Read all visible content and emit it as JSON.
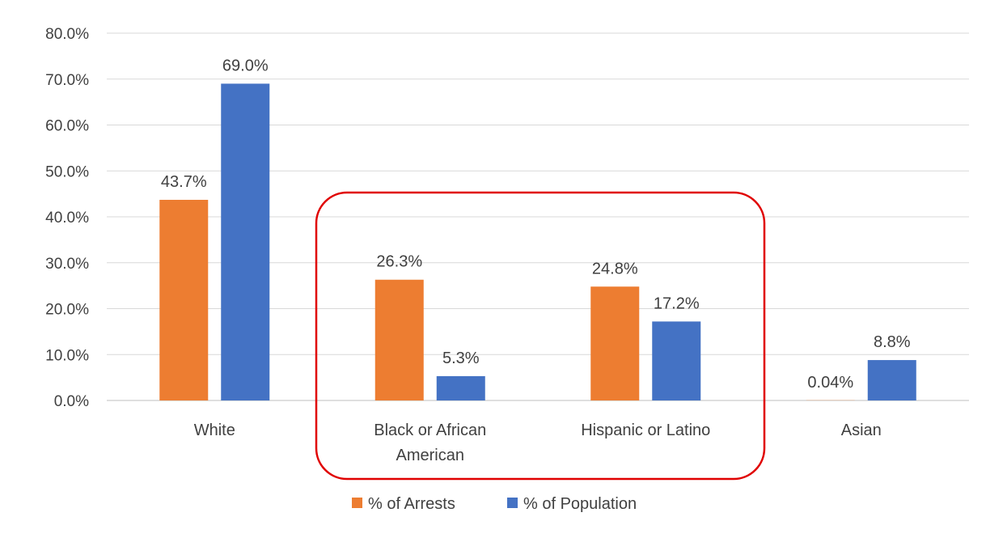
{
  "chart_data": {
    "type": "bar",
    "categories": [
      [
        "White"
      ],
      [
        "Black or African",
        "American"
      ],
      [
        "Hispanic or Latino"
      ],
      [
        "Asian"
      ]
    ],
    "series": [
      {
        "name": "% of Arrests",
        "color": "#ED7D31",
        "values": [
          43.7,
          26.3,
          24.8,
          0.04
        ],
        "labels": [
          "43.7%",
          "26.3%",
          "24.8%",
          "0.04%"
        ]
      },
      {
        "name": "% of Population",
        "color": "#4472C4",
        "values": [
          69.0,
          5.3,
          17.2,
          8.8
        ],
        "labels": [
          "69.0%",
          "5.3%",
          "17.2%",
          "8.8%"
        ]
      }
    ],
    "ylim": [
      0,
      80
    ],
    "yticks": [
      0,
      10,
      20,
      30,
      40,
      50,
      60,
      70,
      80
    ],
    "ytick_labels": [
      "0.0%",
      "10.0%",
      "20.0%",
      "30.0%",
      "40.0%",
      "50.0%",
      "60.0%",
      "70.0%",
      "80.0%"
    ],
    "grid": true,
    "legend_position": "bottom",
    "highlight": {
      "categories": [
        "Black or African American",
        "Hispanic or Latino"
      ],
      "color": "#E00000"
    },
    "title": "",
    "xlabel": "",
    "ylabel": ""
  }
}
